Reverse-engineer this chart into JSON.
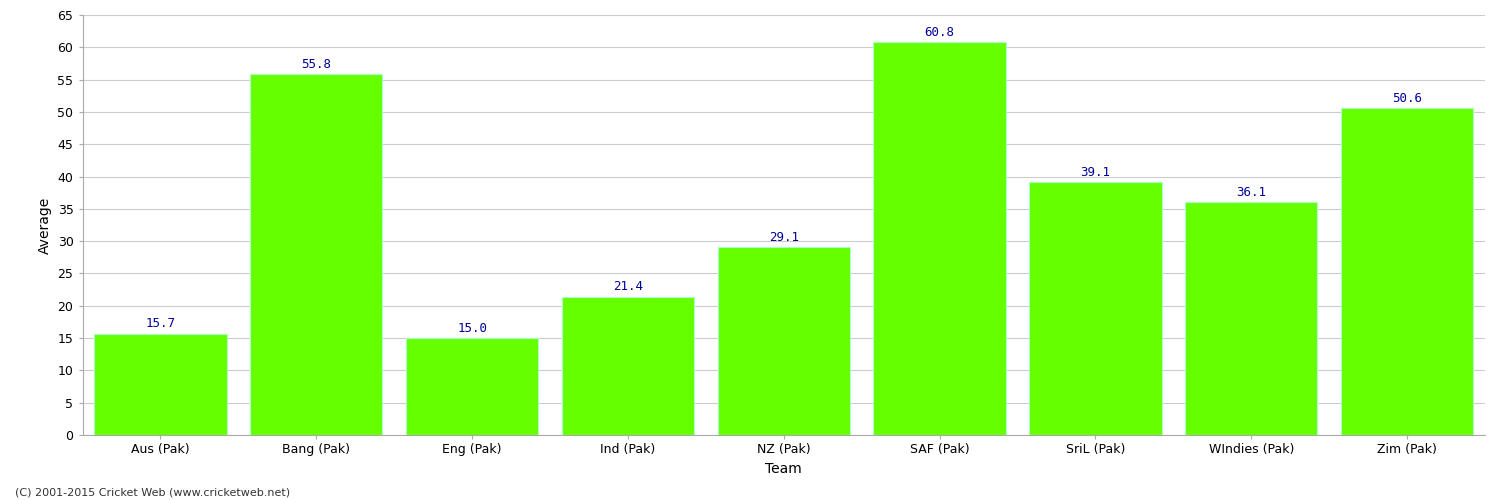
{
  "categories": [
    "Aus (Pak)",
    "Bang (Pak)",
    "Eng (Pak)",
    "Ind (Pak)",
    "NZ (Pak)",
    "SAF (Pak)",
    "SriL (Pak)",
    "WIndies (Pak)",
    "Zim (Pak)"
  ],
  "values": [
    15.7,
    55.8,
    15.0,
    21.4,
    29.1,
    60.8,
    39.1,
    36.1,
    50.6
  ],
  "bar_color": "#66ff00",
  "bar_edge_color": "#aaffcc",
  "label_color": "#000099",
  "xlabel": "Team",
  "ylabel": "Average",
  "ylim": [
    0,
    65
  ],
  "yticks": [
    0,
    5,
    10,
    15,
    20,
    25,
    30,
    35,
    40,
    45,
    50,
    55,
    60,
    65
  ],
  "footer": "(C) 2001-2015 Cricket Web (www.cricketweb.net)",
  "background_color": "#ffffff",
  "grid_color": "#cccccc",
  "label_fontsize": 9,
  "axis_tick_fontsize": 9,
  "axis_label_fontsize": 10,
  "bar_width": 0.85
}
